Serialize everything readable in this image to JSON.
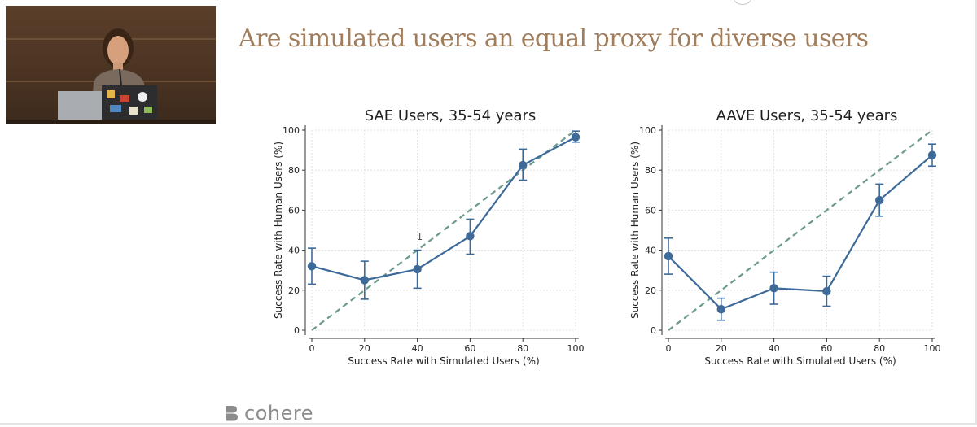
{
  "slide": {
    "title": "Are simulated users an equal proxy for diverse users",
    "brand": "cohere",
    "cursor_glyph": "I"
  },
  "video_thumbnail": {
    "description_icon": "speaker-video-feed"
  },
  "chart_data": [
    {
      "type": "line",
      "title": "SAE Users, 35-54 years",
      "xlabel": "Success Rate with Simulated Users (%)",
      "ylabel": "Success Rate with Human Users (%)",
      "xlim": [
        0,
        100
      ],
      "ylim": [
        0,
        100
      ],
      "xticks": [
        0,
        20,
        40,
        60,
        80,
        100
      ],
      "yticks": [
        0,
        20,
        40,
        60,
        80,
        100
      ],
      "grid": true,
      "series": [
        {
          "x": [
            0,
            20,
            40,
            60,
            80,
            100
          ],
          "y": [
            32,
            25,
            30.5,
            47,
            82.5,
            96.5
          ],
          "err_low": [
            23,
            15.5,
            21,
            38,
            75,
            94
          ],
          "err_high": [
            41,
            34.5,
            40,
            55.5,
            90.5,
            99.5
          ],
          "color": "#3d6a99"
        }
      ],
      "reference_line": {
        "from": [
          0,
          0
        ],
        "to": [
          100,
          100
        ],
        "style": "dashed",
        "color": "#6a9a8c"
      }
    },
    {
      "type": "line",
      "title": "AAVE Users, 35-54 years",
      "xlabel": "Success Rate with Simulated Users (%)",
      "ylabel": "Success Rate with Human Users (%)",
      "xlim": [
        0,
        100
      ],
      "ylim": [
        0,
        100
      ],
      "xticks": [
        0,
        20,
        40,
        60,
        80,
        100
      ],
      "yticks": [
        0,
        20,
        40,
        60,
        80,
        100
      ],
      "grid": true,
      "series": [
        {
          "x": [
            0,
            20,
            40,
            60,
            80,
            100
          ],
          "y": [
            37,
            10.5,
            21,
            19.5,
            65,
            87.5
          ],
          "err_low": [
            28,
            5,
            13,
            12,
            57,
            82
          ],
          "err_high": [
            46,
            16,
            29,
            27,
            73,
            93
          ],
          "color": "#3d6a99"
        }
      ],
      "reference_line": {
        "from": [
          0,
          0
        ],
        "to": [
          100,
          100
        ],
        "style": "dashed",
        "color": "#6a9a8c"
      }
    }
  ]
}
